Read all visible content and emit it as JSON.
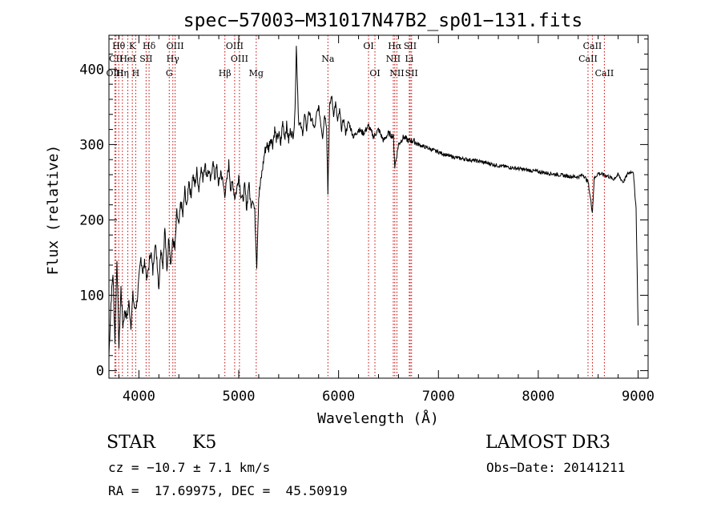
{
  "chart_data": {
    "type": "line",
    "title": "spec−57003−M31017N47B2_sp01−131.fits",
    "xlabel": "Wavelength (Å)",
    "ylabel": "Flux (relative)",
    "xlim": [
      3700,
      9100
    ],
    "ylim": [
      -10,
      445
    ],
    "xticks": [
      4000,
      5000,
      6000,
      7000,
      8000,
      9000
    ],
    "yticks": [
      0,
      100,
      200,
      300,
      400
    ],
    "colors": {
      "spectrum": "#000000",
      "lines": "#cc0000",
      "axes": "#000000"
    },
    "series": [
      {
        "name": "flux",
        "x": [
          3700,
          3720,
          3740,
          3760,
          3780,
          3800,
          3820,
          3840,
          3860,
          3880,
          3900,
          3920,
          3940,
          3960,
          3980,
          4000,
          4020,
          4040,
          4060,
          4080,
          4100,
          4120,
          4140,
          4160,
          4180,
          4200,
          4220,
          4240,
          4260,
          4280,
          4300,
          4320,
          4340,
          4360,
          4380,
          4400,
          4420,
          4440,
          4460,
          4480,
          4500,
          4520,
          4540,
          4560,
          4580,
          4600,
          4620,
          4640,
          4660,
          4680,
          4700,
          4720,
          4740,
          4760,
          4780,
          4800,
          4820,
          4840,
          4860,
          4880,
          4900,
          4920,
          4940,
          4960,
          4980,
          5000,
          5020,
          5040,
          5060,
          5080,
          5100,
          5120,
          5140,
          5160,
          5180,
          5200,
          5220,
          5240,
          5260,
          5280,
          5300,
          5320,
          5340,
          5360,
          5380,
          5400,
          5420,
          5440,
          5460,
          5480,
          5500,
          5520,
          5540,
          5560,
          5577,
          5600,
          5620,
          5640,
          5660,
          5680,
          5700,
          5720,
          5740,
          5760,
          5780,
          5800,
          5820,
          5840,
          5860,
          5880,
          5893,
          5910,
          5930,
          5950,
          5970,
          5990,
          6010,
          6030,
          6050,
          6070,
          6100,
          6150,
          6200,
          6250,
          6300,
          6350,
          6400,
          6450,
          6500,
          6550,
          6563,
          6600,
          6650,
          6700,
          6750,
          6800,
          6900,
          7000,
          7100,
          7200,
          7300,
          7400,
          7500,
          7600,
          7700,
          7800,
          7900,
          8000,
          8100,
          8200,
          8300,
          8400,
          8450,
          8500,
          8542,
          8560,
          8600,
          8650,
          8700,
          8750,
          8800,
          8850,
          8900,
          8950,
          8980,
          9000
        ],
        "values": [
          20,
          90,
          130,
          40,
          150,
          30,
          110,
          60,
          80,
          70,
          90,
          60,
          100,
          80,
          90,
          120,
          150,
          130,
          145,
          120,
          140,
          160,
          130,
          170,
          150,
          110,
          165,
          140,
          190,
          130,
          180,
          140,
          175,
          160,
          210,
          190,
          225,
          205,
          240,
          215,
          255,
          230,
          260,
          245,
          265,
          240,
          270,
          255,
          275,
          260,
          265,
          250,
          280,
          255,
          270,
          245,
          265,
          250,
          235,
          250,
          275,
          240,
          250,
          230,
          240,
          260,
          235,
          225,
          245,
          215,
          250,
          220,
          230,
          210,
          140,
          230,
          250,
          270,
          290,
          300,
          295,
          310,
          300,
          320,
          305,
          315,
          300,
          330,
          310,
          325,
          305,
          320,
          310,
          330,
          430,
          330,
          325,
          315,
          340,
          320,
          345,
          335,
          330,
          320,
          340,
          350,
          330,
          310,
          340,
          325,
          235,
          350,
          365,
          340,
          355,
          330,
          345,
          320,
          335,
          315,
          330,
          310,
          320,
          315,
          325,
          310,
          320,
          305,
          315,
          310,
          270,
          300,
          310,
          305,
          305,
          300,
          295,
          290,
          285,
          282,
          280,
          278,
          275,
          272,
          270,
          268,
          266,
          264,
          262,
          260,
          258,
          257,
          260,
          250,
          210,
          255,
          262,
          260,
          258,
          254,
          260,
          250,
          262,
          265,
          215,
          60
        ]
      }
    ],
    "annotations": [
      {
        "label": "Hθ",
        "wavelength": 3798,
        "row": 1
      },
      {
        "label": "CII",
        "wavelength": 3770,
        "row": 2
      },
      {
        "label": "OIII",
        "wavelength": 3760,
        "row": 3
      },
      {
        "label": "Hη",
        "wavelength": 3835,
        "row": 3
      },
      {
        "label": "K",
        "wavelength": 3934,
        "row": 1
      },
      {
        "label": "HeI",
        "wavelength": 3889,
        "row": 2
      },
      {
        "label": "H",
        "wavelength": 3968,
        "row": 3
      },
      {
        "label": "Hδ",
        "wavelength": 4102,
        "row": 1
      },
      {
        "label": "SII",
        "wavelength": 4072,
        "row": 2
      },
      {
        "label": "OIII",
        "wavelength": 4363,
        "row": 1
      },
      {
        "label": "Hγ",
        "wavelength": 4340,
        "row": 2
      },
      {
        "label": "G",
        "wavelength": 4304,
        "row": 3
      },
      {
        "label": "OIII",
        "wavelength": 4959,
        "row": 1
      },
      {
        "label": "OIII",
        "wavelength": 5007,
        "row": 2
      },
      {
        "label": "Hβ",
        "wavelength": 4861,
        "row": 3
      },
      {
        "label": "Mg",
        "wavelength": 5175,
        "row": 3
      },
      {
        "label": "Na",
        "wavelength": 5893,
        "row": 2
      },
      {
        "label": "OI",
        "wavelength": 6300,
        "row": 1
      },
      {
        "label": "OI",
        "wavelength": 6364,
        "row": 3
      },
      {
        "label": "Hα",
        "wavelength": 6563,
        "row": 1
      },
      {
        "label": "NII",
        "wavelength": 6548,
        "row": 2
      },
      {
        "label": "NII",
        "wavelength": 6584,
        "row": 3
      },
      {
        "label": "SII",
        "wavelength": 6717,
        "row": 1
      },
      {
        "label": "Li",
        "wavelength": 6708,
        "row": 2
      },
      {
        "label": "SII",
        "wavelength": 6731,
        "row": 3
      },
      {
        "label": "CaII",
        "wavelength": 8542,
        "row": 1
      },
      {
        "label": "CaII",
        "wavelength": 8498,
        "row": 2
      },
      {
        "label": "CaII",
        "wavelength": 8662,
        "row": 3
      }
    ]
  },
  "info": {
    "object_type": "STAR",
    "subclass": "K5",
    "survey": "LAMOST DR3",
    "cz": "cz = −10.7 ± 7.1 km/s",
    "obs_date": "Obs−Date: 20141211",
    "coords": "RA =  17.69975, DEC =  45.50919"
  }
}
